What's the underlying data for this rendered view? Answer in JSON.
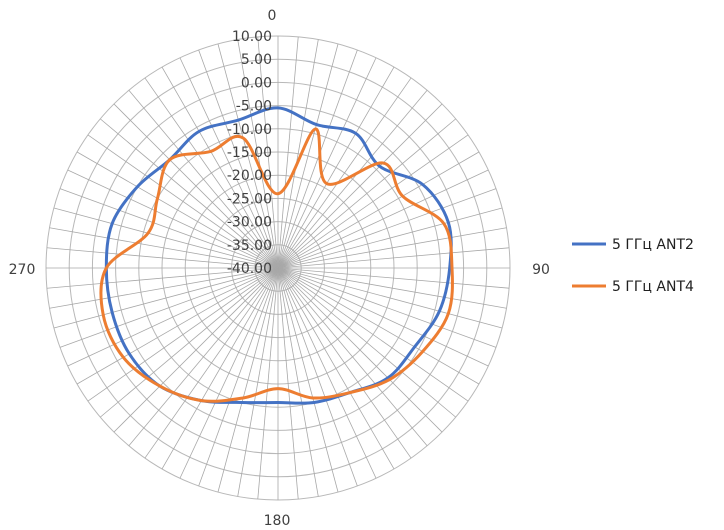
{
  "chart_data": {
    "type": "radar",
    "title": "",
    "radial_axis": {
      "min": -40,
      "max": 10,
      "tick_labels": [
        "10.00",
        "5.00",
        "0.00",
        "-5.00",
        "-10.00",
        "-15.00",
        "-20.00",
        "-25.00",
        "-30.00",
        "-35.00",
        "-40.00"
      ]
    },
    "angular_axis": {
      "direction": "clockwise",
      "zero_at": "top",
      "spoke_step_deg": 5,
      "labels": [
        {
          "angle": 0,
          "text": "0"
        },
        {
          "angle": 90,
          "text": "90"
        },
        {
          "angle": 180,
          "text": "180"
        },
        {
          "angle": 270,
          "text": "270"
        }
      ]
    },
    "grid": true,
    "legend": "right",
    "angles": [
      0,
      15,
      30,
      45,
      60,
      75,
      90,
      105,
      120,
      135,
      150,
      165,
      180,
      195,
      210,
      225,
      240,
      255,
      270,
      285,
      300,
      315,
      330,
      345
    ],
    "series": [
      {
        "name": "5 ГГц ANT2",
        "color": "#4472C4",
        "values": [
          -5.5,
          -8,
          -6.5,
          -9,
          -4,
          -2,
          -3,
          -4,
          -6,
          -6.5,
          -9,
          -10,
          -11,
          -10,
          -7,
          -4,
          -3,
          -3,
          -3,
          -3,
          -5,
          -7,
          -6,
          -7
        ]
      },
      {
        "name": "5 ГГц ANT4",
        "color": "#ED7D31",
        "values": [
          -24,
          -9,
          -19,
          -8,
          -9,
          -3,
          -2.5,
          -2,
          -4,
          -6,
          -9,
          -11,
          -14,
          -11,
          -7,
          -4,
          -1.5,
          -1,
          -3,
          -11,
          -10,
          -7,
          -11,
          -11
        ]
      }
    ]
  }
}
